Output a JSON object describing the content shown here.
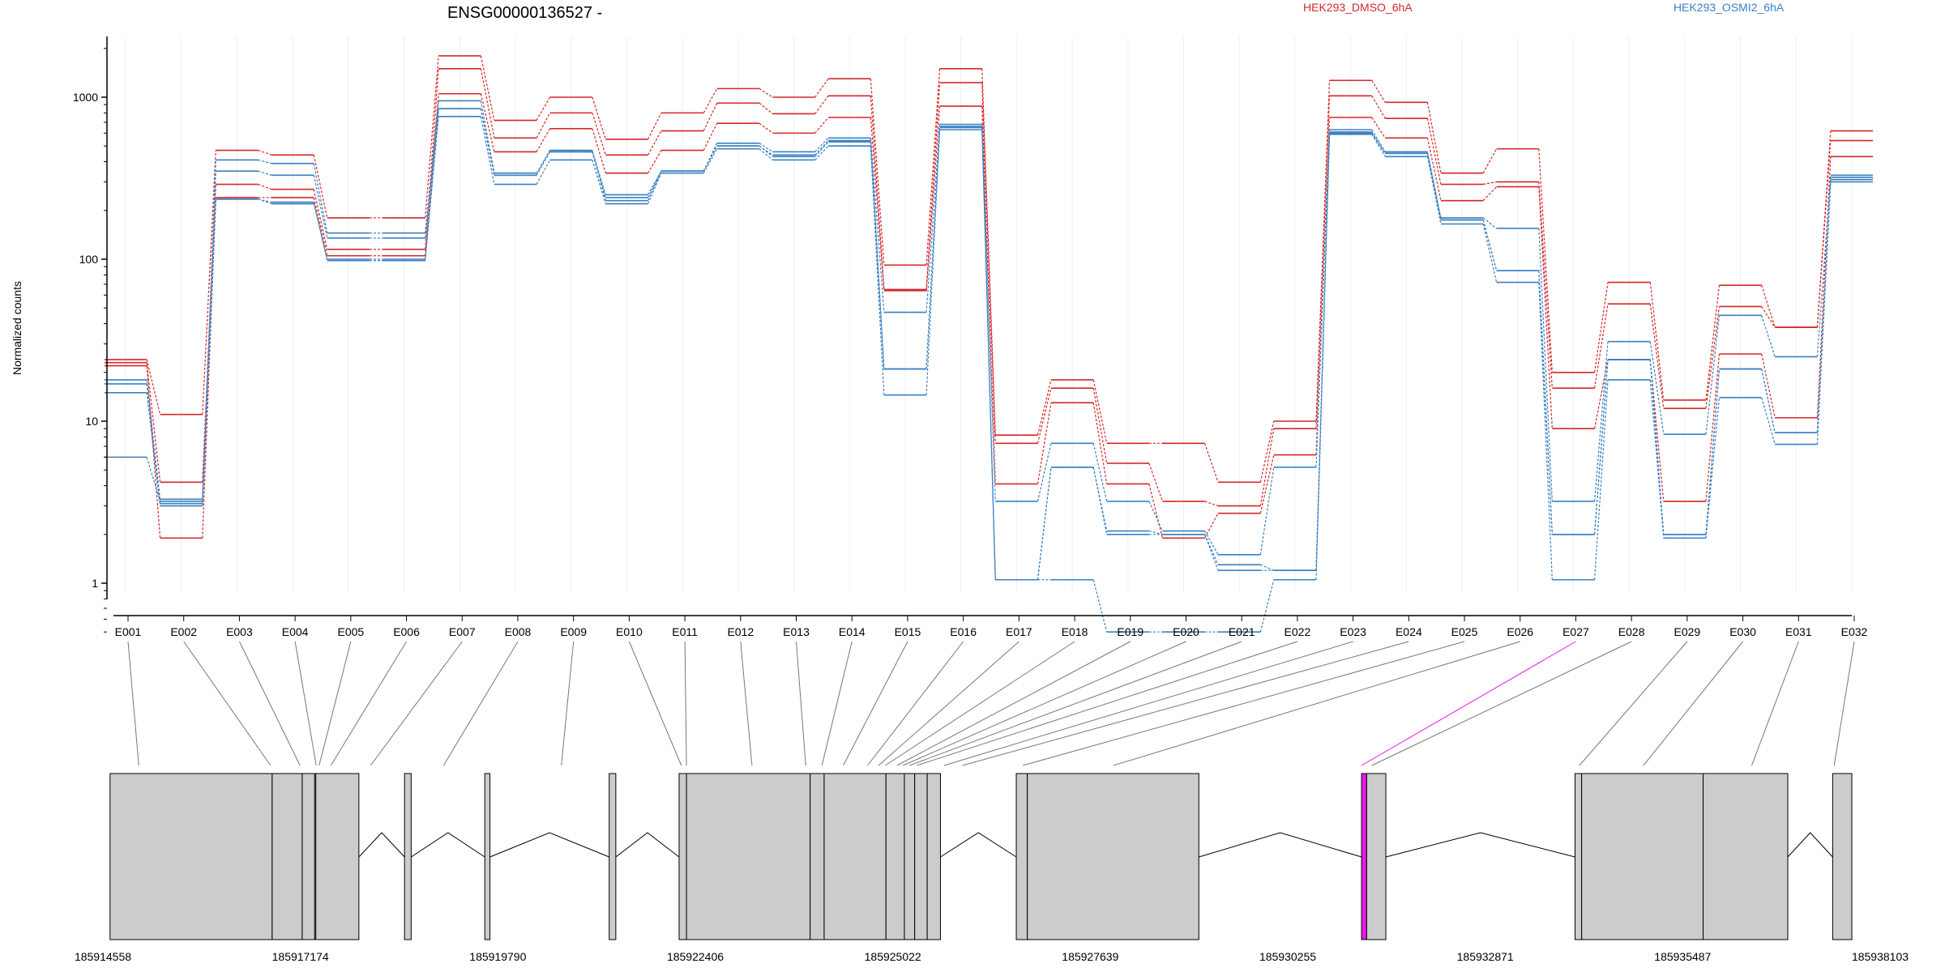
{
  "chart_data": {
    "type": "line",
    "title": "ENSG00000136527 -",
    "ylabel": "Normalized counts",
    "y_scale": "log",
    "ylim": [
      0.5,
      2500
    ],
    "y_ticks": [
      1,
      10,
      100,
      1000
    ],
    "y_tick_labels": [
      "1",
      "10",
      "100",
      "1000"
    ],
    "grid": "vertical, light",
    "legend_position": "top-right",
    "colors": {
      "HEK293_DMSO_6hA": "#d62728",
      "HEK293_OSMI2_6hA": "#3a80c0",
      "highlight": "#e619e6",
      "exon": "#cccccc",
      "axis": "#000000"
    },
    "legend": [
      {
        "label": "HEK293_DMSO_6hA",
        "color": "#d62728"
      },
      {
        "label": "HEK293_OSMI2_6hA",
        "color": "#3a80c0"
      }
    ],
    "categories": [
      "E001",
      "E002",
      "E003",
      "E004",
      "E005",
      "E006",
      "E007",
      "E008",
      "E009",
      "E010",
      "E011",
      "E012",
      "E013",
      "E014",
      "E015",
      "E016",
      "E017",
      "E018",
      "E019",
      "E020",
      "E021",
      "E022",
      "E023",
      "E024",
      "E025",
      "E026",
      "E027",
      "E028",
      "E029",
      "E030",
      "E031",
      "E032"
    ],
    "series": [
      {
        "group": "HEK293_DMSO_6hA",
        "color": "#d62728",
        "values": [
          24,
          11,
          470,
          440,
          180,
          180,
          1800,
          720,
          1000,
          550,
          800,
          1130,
          1000,
          1300,
          92,
          1500,
          8.2,
          18,
          7.3,
          7.3,
          4.2,
          10,
          1270,
          930,
          340,
          480,
          20,
          72,
          13.5,
          69,
          38,
          620
        ]
      },
      {
        "group": "HEK293_DMSO_6hA",
        "color": "#d62728",
        "values": [
          23,
          4.2,
          290,
          270,
          115,
          115,
          1500,
          560,
          800,
          440,
          620,
          920,
          790,
          1020,
          65,
          1230,
          7.3,
          16,
          5.5,
          3.2,
          3.0,
          9,
          1020,
          740,
          290,
          300,
          16,
          53,
          12,
          51,
          38,
          540
        ]
      },
      {
        "group": "HEK293_DMSO_6hA",
        "color": "#d62728",
        "values": [
          22,
          1.9,
          240,
          240,
          105,
          105,
          1050,
          460,
          640,
          340,
          470,
          690,
          600,
          750,
          64,
          880,
          4.1,
          13,
          4.1,
          1.9,
          2.7,
          6.2,
          750,
          560,
          230,
          280,
          9,
          24,
          3.2,
          26,
          10.5,
          430
        ]
      },
      {
        "group": "HEK293_OSMI2_6hA",
        "color": "#3a80c0",
        "values": [
          18,
          3.3,
          410,
          390,
          145,
          145,
          950,
          340,
          470,
          250,
          350,
          520,
          460,
          560,
          47,
          680,
          3.2,
          7.3,
          3.2,
          2.1,
          1.5,
          5.2,
          630,
          460,
          180,
          155,
          3.2,
          31,
          8.3,
          45,
          25,
          330
        ]
      },
      {
        "group": "HEK293_OSMI2_6hA",
        "color": "#3a80c0",
        "values": [
          17,
          3.1,
          350,
          330,
          135,
          135,
          850,
          330,
          460,
          240,
          350,
          500,
          430,
          530,
          21,
          650,
          1.05,
          5.2,
          2.0,
          2.0,
          1.2,
          1.2,
          600,
          450,
          175,
          85,
          2.0,
          24,
          2.0,
          21,
          8.5,
          310
        ]
      },
      {
        "group": "HEK293_OSMI2_6hA",
        "color": "#3a80c0",
        "values": [
          15,
          3.0,
          235,
          220,
          100,
          100,
          760,
          290,
          410,
          220,
          340,
          480,
          410,
          500,
          14.5,
          630,
          1.05,
          1.05,
          0.5,
          0.5,
          0.5,
          1.05,
          590,
          430,
          165,
          72,
          1.05,
          18,
          1.9,
          14,
          7.2,
          300
        ]
      },
      {
        "group": "HEK293_OSMI2_6hA",
        "color": "#3a80c0",
        "values": [
          6,
          3.2,
          235,
          225,
          98,
          98,
          850,
          330,
          460,
          230,
          350,
          500,
          440,
          540,
          21,
          660,
          1.05,
          5.2,
          2.1,
          2.0,
          1.3,
          1.2,
          610,
          450,
          175,
          85,
          2.0,
          24,
          2.0,
          21,
          8.5,
          320
        ]
      }
    ],
    "gene_track": {
      "genomic_ticks": [
        "185914558",
        "185917174",
        "185919790",
        "185922406",
        "185925022",
        "185927639",
        "185930255",
        "185932871",
        "185935487",
        "185938103"
      ],
      "genomic_range": [
        185914558,
        185938700
      ],
      "highlighted_exon": "E027",
      "exons": [
        {
          "id": "E001",
          "start": 185914600,
          "end": 185916802
        },
        {
          "id": "E002",
          "start": 185916802,
          "end": 185917210
        },
        {
          "id": "E003",
          "start": 185917210,
          "end": 185917380
        },
        {
          "id": "E004",
          "start": 185917380,
          "end": 185917395
        },
        {
          "id": "E005",
          "start": 185917395,
          "end": 185917980
        },
        {
          "id": "E006",
          "start": 185918600,
          "end": 185918690
        },
        {
          "id": "E007",
          "start": 185919690,
          "end": 185919760
        },
        {
          "id": "E008",
          "start": 185921380,
          "end": 185921470
        },
        {
          "id": "E009",
          "start": 185922330,
          "end": 185922430
        },
        {
          "id": "E010",
          "start": 185922430,
          "end": 185924110
        },
        {
          "id": "E011",
          "start": 185924110,
          "end": 185924300
        },
        {
          "id": "E012",
          "start": 185924300,
          "end": 185925140
        },
        {
          "id": "E013",
          "start": 185925140,
          "end": 185925390
        },
        {
          "id": "E014",
          "start": 185925390,
          "end": 185925530
        },
        {
          "id": "E015",
          "start": 185925530,
          "end": 185925700
        },
        {
          "id": "E016",
          "start": 185925700,
          "end": 185925880
        },
        {
          "id": "E017",
          "start": 185926910,
          "end": 185927060
        },
        {
          "id": "E018",
          "start": 185927060,
          "end": 185929390
        },
        {
          "id": "E019",
          "start": 185929390,
          "end": 185929390
        },
        {
          "id": "E020",
          "start": 185929390,
          "end": 185929390
        },
        {
          "id": "E021",
          "start": 185929390,
          "end": 185929390
        },
        {
          "id": "E022",
          "start": 185929390,
          "end": 185929390
        },
        {
          "id": "E023",
          "start": 185929390,
          "end": 185929390
        },
        {
          "id": "E024",
          "start": 185929390,
          "end": 185929390
        },
        {
          "id": "E025",
          "start": 185929390,
          "end": 185929390
        },
        {
          "id": "E026",
          "start": 185929390,
          "end": 185929390
        },
        {
          "id": "E027",
          "start": 185931600,
          "end": 185931670
        },
        {
          "id": "E028",
          "start": 185931670,
          "end": 185931930
        },
        {
          "id": "E029",
          "start": 185934500,
          "end": 185934590
        },
        {
          "id": "E030",
          "start": 185934590,
          "end": 185936240
        },
        {
          "id": "E031",
          "start": 185936240,
          "end": 185937390
        },
        {
          "id": "E032",
          "start": 185938000,
          "end": 185938260
        }
      ],
      "exon_links": [
        185914990,
        185916780,
        185917180,
        185917400,
        185917440,
        185917600,
        185918140,
        185919130,
        185920730,
        185922360,
        185922430,
        185923320,
        185924050,
        185924270,
        185924560,
        185924890,
        185925040,
        185925130,
        185925290,
        185925370,
        185925460,
        185925560,
        185925930,
        185926180,
        185927000,
        185928230,
        185931600,
        185931740,
        185934560,
        185935430,
        185936900,
        185938020
      ]
    }
  }
}
